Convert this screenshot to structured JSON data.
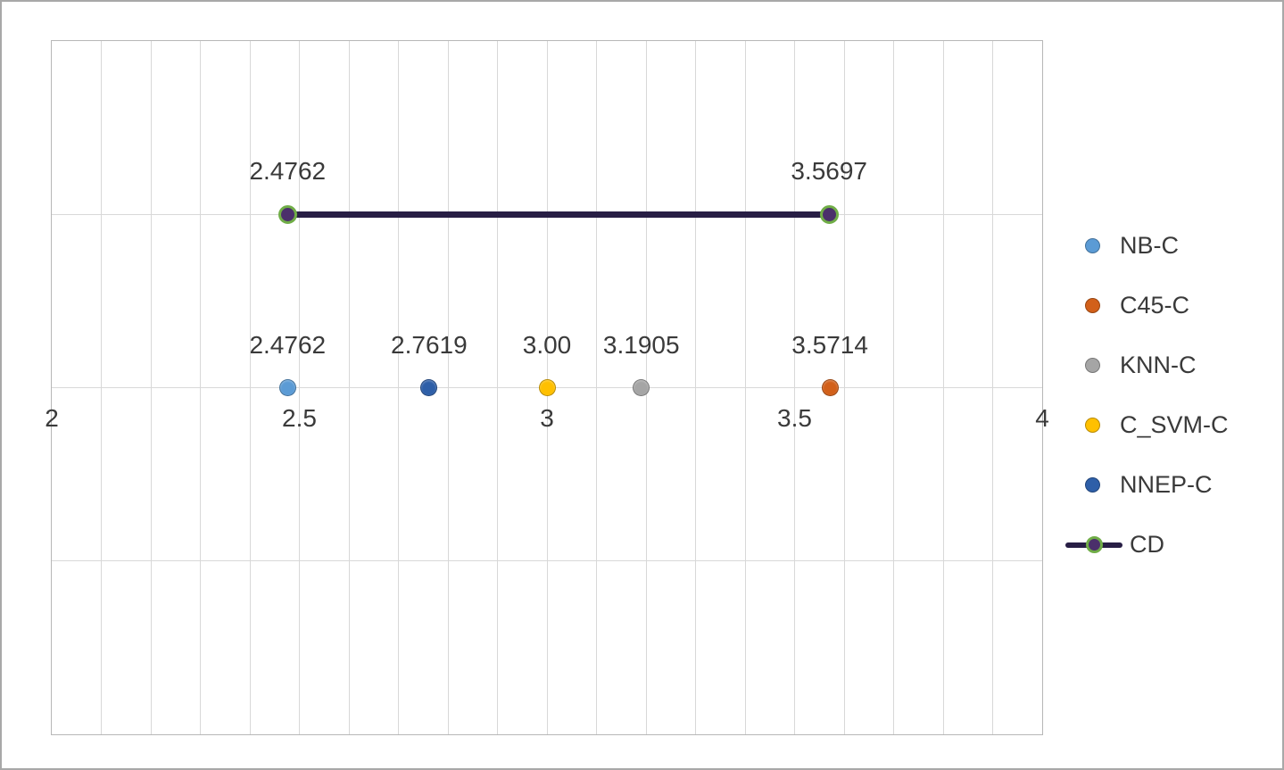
{
  "chart_data": {
    "type": "scatter",
    "title": "",
    "xlabel": "",
    "ylabel": "",
    "xlim": [
      2,
      4
    ],
    "ylim": [
      0,
      4
    ],
    "x_ticks": [
      2,
      2.5,
      3,
      3.5,
      4
    ],
    "x_tick_labels": [
      "2",
      "2.5",
      "3",
      "3.5",
      "4"
    ],
    "x_minor_step": 0.1,
    "y_gridlines": [
      1,
      2,
      3
    ],
    "grid": true,
    "legend_position": "right",
    "series": [
      {
        "name": "NB-C",
        "color": "#5B9BD5",
        "points": [
          {
            "x": 2.4762,
            "y": 2,
            "label": "2.4762"
          }
        ]
      },
      {
        "name": "C45-C",
        "color": "#D2601A",
        "points": [
          {
            "x": 3.5714,
            "y": 2,
            "label": "3.5714"
          }
        ]
      },
      {
        "name": "KNN-C",
        "color": "#A5A5A5",
        "points": [
          {
            "x": 3.1905,
            "y": 2,
            "label": "3.1905"
          }
        ]
      },
      {
        "name": "C_SVM-C",
        "color": "#FFC000",
        "points": [
          {
            "x": 3.0,
            "y": 2,
            "label": "3.00"
          }
        ]
      },
      {
        "name": "NNEP-C",
        "color": "#2E5FA8",
        "points": [
          {
            "x": 2.7619,
            "y": 2,
            "label": "2.7619"
          }
        ]
      }
    ],
    "cd_line": {
      "name": "CD",
      "color": "#281E45",
      "marker_fill": "#4B2F6B",
      "marker_border": "#70AD47",
      "y": 3,
      "x_start": 2.4762,
      "x_end": 3.5697,
      "label_start": "2.4762",
      "label_end": "3.5697"
    },
    "legend": [
      {
        "label": "NB-C",
        "type": "circle",
        "color": "#5B9BD5"
      },
      {
        "label": "C45-C",
        "type": "circle",
        "color": "#D2601A"
      },
      {
        "label": "KNN-C",
        "type": "circle",
        "color": "#A5A5A5"
      },
      {
        "label": "C_SVM-C",
        "type": "circle",
        "color": "#FFC000"
      },
      {
        "label": "NNEP-C",
        "type": "circle",
        "color": "#2E5FA8"
      },
      {
        "label": "CD",
        "type": "line-marker",
        "color": "#281E45"
      }
    ]
  }
}
